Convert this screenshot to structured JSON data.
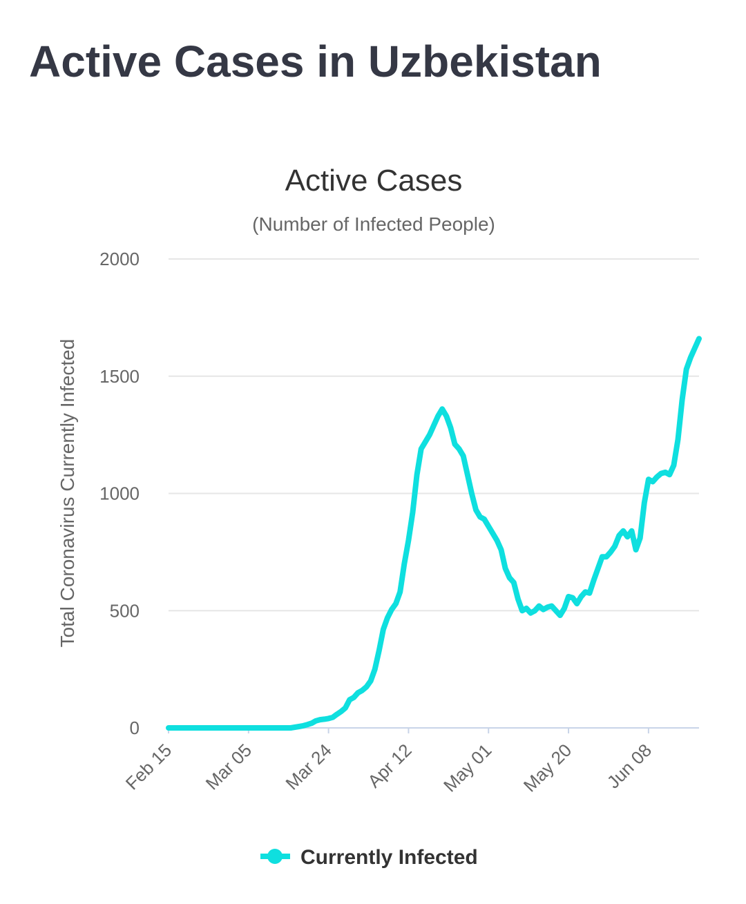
{
  "page": {
    "title": "Active Cases in Uzbekistan"
  },
  "chart_data": {
    "type": "line",
    "title": "Active Cases",
    "subtitle": "(Number of Infected People)",
    "xlabel": "",
    "ylabel": "Total Coronavirus Currently Infected",
    "ylim": [
      0,
      2000
    ],
    "yticks": [
      0,
      500,
      1000,
      1500,
      2000
    ],
    "xtick_labels": [
      "Feb 15",
      "Mar 05",
      "Mar 24",
      "Apr 12",
      "May 01",
      "May 20",
      "Jun 08"
    ],
    "xtick_day_index": [
      0,
      19,
      38,
      57,
      76,
      95,
      114
    ],
    "x_day_range": [
      0,
      126
    ],
    "grid": true,
    "legend": {
      "position": "bottom-center"
    },
    "series": [
      {
        "name": "Currently Infected",
        "color": "#0FDFDF",
        "points": [
          [
            0,
            0
          ],
          [
            29,
            0
          ],
          [
            30,
            3
          ],
          [
            31,
            6
          ],
          [
            32,
            9
          ],
          [
            33,
            14
          ],
          [
            34,
            20
          ],
          [
            35,
            30
          ],
          [
            36,
            35
          ],
          [
            37,
            37
          ],
          [
            38,
            40
          ],
          [
            39,
            45
          ],
          [
            40,
            58
          ],
          [
            41,
            70
          ],
          [
            42,
            85
          ],
          [
            43,
            120
          ],
          [
            44,
            130
          ],
          [
            45,
            150
          ],
          [
            46,
            160
          ],
          [
            47,
            175
          ],
          [
            48,
            200
          ],
          [
            49,
            250
          ],
          [
            50,
            330
          ],
          [
            51,
            420
          ],
          [
            52,
            470
          ],
          [
            53,
            505
          ],
          [
            54,
            530
          ],
          [
            55,
            580
          ],
          [
            56,
            700
          ],
          [
            57,
            800
          ],
          [
            58,
            920
          ],
          [
            59,
            1080
          ],
          [
            60,
            1190
          ],
          [
            61,
            1220
          ],
          [
            62,
            1250
          ],
          [
            63,
            1290
          ],
          [
            64,
            1330
          ],
          [
            65,
            1360
          ],
          [
            66,
            1330
          ],
          [
            67,
            1280
          ],
          [
            68,
            1210
          ],
          [
            69,
            1190
          ],
          [
            70,
            1160
          ],
          [
            71,
            1080
          ],
          [
            72,
            1000
          ],
          [
            73,
            930
          ],
          [
            74,
            900
          ],
          [
            75,
            890
          ],
          [
            76,
            860
          ],
          [
            77,
            830
          ],
          [
            78,
            800
          ],
          [
            79,
            760
          ],
          [
            80,
            680
          ],
          [
            81,
            640
          ],
          [
            82,
            620
          ],
          [
            83,
            550
          ],
          [
            84,
            500
          ],
          [
            85,
            510
          ],
          [
            86,
            490
          ],
          [
            87,
            500
          ],
          [
            88,
            520
          ],
          [
            89,
            505
          ],
          [
            90,
            515
          ],
          [
            91,
            520
          ],
          [
            92,
            500
          ],
          [
            93,
            480
          ],
          [
            94,
            510
          ],
          [
            95,
            560
          ],
          [
            96,
            555
          ],
          [
            97,
            530
          ],
          [
            98,
            560
          ],
          [
            99,
            580
          ],
          [
            100,
            575
          ],
          [
            101,
            630
          ],
          [
            102,
            680
          ],
          [
            103,
            730
          ],
          [
            104,
            730
          ],
          [
            105,
            750
          ],
          [
            106,
            775
          ],
          [
            107,
            820
          ],
          [
            108,
            840
          ],
          [
            109,
            815
          ],
          [
            110,
            840
          ],
          [
            111,
            760
          ],
          [
            112,
            810
          ],
          [
            113,
            960
          ],
          [
            114,
            1060
          ],
          [
            115,
            1050
          ],
          [
            116,
            1070
          ],
          [
            117,
            1085
          ],
          [
            118,
            1090
          ],
          [
            119,
            1080
          ],
          [
            120,
            1120
          ],
          [
            121,
            1230
          ],
          [
            122,
            1400
          ],
          [
            123,
            1530
          ],
          [
            124,
            1580
          ],
          [
            125,
            1620
          ],
          [
            126,
            1660
          ]
        ]
      }
    ]
  }
}
